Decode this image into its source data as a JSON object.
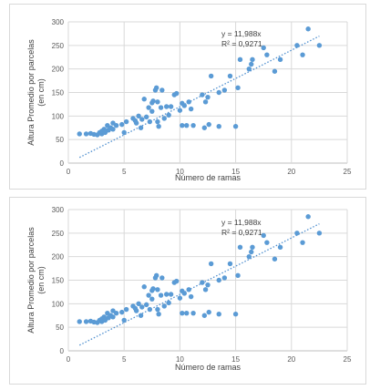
{
  "chart_data": [
    {
      "type": "scatter",
      "xlabel": "Número de ramas",
      "ylabel_line1": "Altura Promedio por parcelas",
      "ylabel_line2": "(en cm)",
      "xlim": [
        0,
        25
      ],
      "ylim": [
        0,
        300
      ],
      "xticks": [
        "0",
        "5",
        "10",
        "15",
        "20",
        "25"
      ],
      "yticks": [
        "0",
        "50",
        "100",
        "150",
        "200",
        "250",
        "300"
      ],
      "grid": true,
      "trendline": {
        "slope": 11.988,
        "x_range": [
          1,
          22.5
        ]
      },
      "equation": "y = 11,988x",
      "r2": "R² = 0,9271",
      "series": [
        {
          "color": "#5b9bd5",
          "points": [
            [
              1,
              62
            ],
            [
              1.6,
              62
            ],
            [
              2,
              63
            ],
            [
              2.3,
              61
            ],
            [
              2.6,
              60
            ],
            [
              2.8,
              65
            ],
            [
              3,
              62
            ],
            [
              3,
              68
            ],
            [
              3.2,
              72
            ],
            [
              3.3,
              65
            ],
            [
              3.5,
              80
            ],
            [
              3.6,
              70
            ],
            [
              3.8,
              75
            ],
            [
              4,
              85
            ],
            [
              4,
              72
            ],
            [
              4.3,
              80
            ],
            [
              4.8,
              82
            ],
            [
              5,
              65
            ],
            [
              5.2,
              88
            ],
            [
              5.8,
              95
            ],
            [
              6,
              90
            ],
            [
              6.1,
              85
            ],
            [
              6.3,
              100
            ],
            [
              6.5,
              75
            ],
            [
              6.6,
              93
            ],
            [
              6.8,
              136
            ],
            [
              7,
              98
            ],
            [
              7.2,
              118
            ],
            [
              7.3,
              88
            ],
            [
              7.5,
              110
            ],
            [
              7.5,
              128
            ],
            [
              7.6,
              132
            ],
            [
              7.8,
              155
            ],
            [
              7.9,
              160
            ],
            [
              8,
              88
            ],
            [
              8,
              130
            ],
            [
              8.1,
              78
            ],
            [
              8.3,
              118
            ],
            [
              8.4,
              155
            ],
            [
              8.6,
              95
            ],
            [
              8.8,
              120
            ],
            [
              9,
              102
            ],
            [
              9.2,
              120
            ],
            [
              9.5,
              145
            ],
            [
              9.7,
              148
            ],
            [
              10,
              112
            ],
            [
              10.2,
              127
            ],
            [
              10.2,
              80
            ],
            [
              10.4,
              122
            ],
            [
              10.6,
              80
            ],
            [
              10.8,
              130
            ],
            [
              11,
              115
            ],
            [
              11.2,
              80
            ],
            [
              12,
              145
            ],
            [
              12.2,
              75
            ],
            [
              12.3,
              130
            ],
            [
              12.5,
              140
            ],
            [
              12.6,
              82
            ],
            [
              12.8,
              185
            ],
            [
              13.5,
              78
            ],
            [
              13.5,
              150
            ],
            [
              14,
              155
            ],
            [
              14.5,
              185
            ],
            [
              15,
              78
            ],
            [
              15.2,
              160
            ],
            [
              15.4,
              220
            ],
            [
              16.2,
              200
            ],
            [
              16.4,
              210
            ],
            [
              16.5,
              220
            ],
            [
              17.5,
              245
            ],
            [
              17.8,
              230
            ],
            [
              18.5,
              195
            ],
            [
              19,
              220
            ],
            [
              20.5,
              250
            ],
            [
              21,
              230
            ],
            [
              21.5,
              285
            ],
            [
              22.5,
              250
            ]
          ]
        }
      ]
    },
    {
      "type": "scatter",
      "xlabel": "Número de ramas",
      "ylabel_line1": "Altura Promedio por parcelas",
      "ylabel_line2": "(en cm)",
      "xlim": [
        0,
        25
      ],
      "ylim": [
        0,
        300
      ],
      "xticks": [
        "0",
        "5",
        "10",
        "15",
        "20",
        "25"
      ],
      "yticks": [
        "0",
        "50",
        "100",
        "150",
        "200",
        "250",
        "300"
      ],
      "grid": true,
      "trendline": {
        "slope": 11.988,
        "x_range": [
          1,
          22.5
        ]
      },
      "equation": "y = 11,988x",
      "r2": "R² = 0,9271",
      "series": [
        {
          "color": "#5b9bd5",
          "points": [
            [
              1,
              62
            ],
            [
              1.6,
              62
            ],
            [
              2,
              63
            ],
            [
              2.3,
              61
            ],
            [
              2.6,
              60
            ],
            [
              2.8,
              65
            ],
            [
              3,
              62
            ],
            [
              3,
              68
            ],
            [
              3.2,
              72
            ],
            [
              3.3,
              65
            ],
            [
              3.5,
              80
            ],
            [
              3.6,
              70
            ],
            [
              3.8,
              75
            ],
            [
              4,
              85
            ],
            [
              4,
              72
            ],
            [
              4.3,
              80
            ],
            [
              4.8,
              82
            ],
            [
              5,
              65
            ],
            [
              5.2,
              88
            ],
            [
              5.8,
              95
            ],
            [
              6,
              90
            ],
            [
              6.1,
              85
            ],
            [
              6.3,
              100
            ],
            [
              6.5,
              75
            ],
            [
              6.6,
              93
            ],
            [
              6.8,
              136
            ],
            [
              7,
              98
            ],
            [
              7.2,
              118
            ],
            [
              7.3,
              88
            ],
            [
              7.5,
              110
            ],
            [
              7.5,
              128
            ],
            [
              7.6,
              132
            ],
            [
              7.8,
              155
            ],
            [
              7.9,
              160
            ],
            [
              8,
              88
            ],
            [
              8,
              130
            ],
            [
              8.1,
              78
            ],
            [
              8.3,
              118
            ],
            [
              8.4,
              155
            ],
            [
              8.6,
              95
            ],
            [
              8.8,
              120
            ],
            [
              9,
              102
            ],
            [
              9.2,
              120
            ],
            [
              9.5,
              145
            ],
            [
              9.7,
              148
            ],
            [
              10,
              112
            ],
            [
              10.2,
              127
            ],
            [
              10.2,
              80
            ],
            [
              10.4,
              122
            ],
            [
              10.6,
              80
            ],
            [
              10.8,
              130
            ],
            [
              11,
              115
            ],
            [
              11.2,
              80
            ],
            [
              12,
              145
            ],
            [
              12.2,
              75
            ],
            [
              12.3,
              130
            ],
            [
              12.5,
              140
            ],
            [
              12.6,
              82
            ],
            [
              12.8,
              185
            ],
            [
              13.5,
              78
            ],
            [
              13.5,
              150
            ],
            [
              14,
              155
            ],
            [
              14.5,
              185
            ],
            [
              15,
              78
            ],
            [
              15.2,
              160
            ],
            [
              15.4,
              220
            ],
            [
              16.2,
              200
            ],
            [
              16.4,
              210
            ],
            [
              16.5,
              220
            ],
            [
              17.5,
              245
            ],
            [
              17.8,
              230
            ],
            [
              18.5,
              195
            ],
            [
              19,
              220
            ],
            [
              20.5,
              250
            ],
            [
              21,
              230
            ],
            [
              21.5,
              285
            ],
            [
              22.5,
              250
            ]
          ]
        }
      ]
    }
  ]
}
